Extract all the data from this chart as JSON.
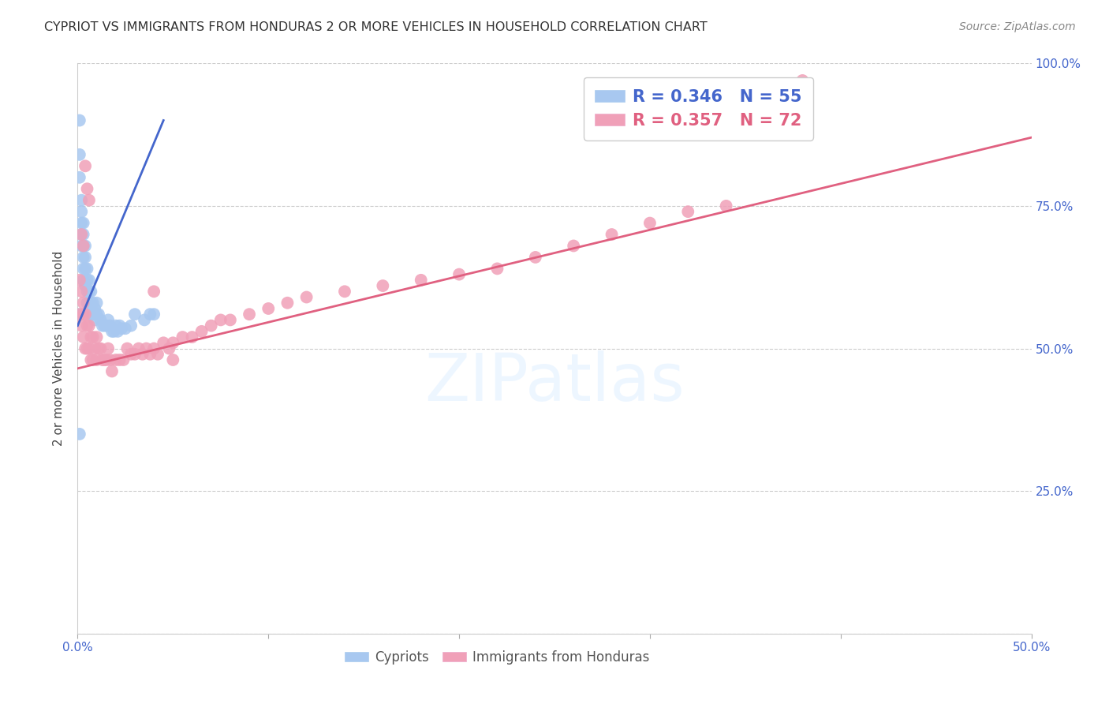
{
  "title": "CYPRIOT VS IMMIGRANTS FROM HONDURAS 2 OR MORE VEHICLES IN HOUSEHOLD CORRELATION CHART",
  "source": "Source: ZipAtlas.com",
  "ylabel": "2 or more Vehicles in Household",
  "xmin": 0.0,
  "xmax": 0.5,
  "ymin": 0.0,
  "ymax": 1.0,
  "xtick_positions": [
    0.0,
    0.1,
    0.2,
    0.3,
    0.4,
    0.5
  ],
  "xtick_labels": [
    "0.0%",
    "",
    "",
    "",
    "",
    "50.0%"
  ],
  "yticks": [
    0.0,
    0.25,
    0.5,
    0.75,
    1.0
  ],
  "ytick_labels_right": [
    "",
    "25.0%",
    "50.0%",
    "75.0%",
    "100.0%"
  ],
  "grid_color": "#cccccc",
  "background_color": "#ffffff",
  "cypriot_color": "#a8c8f0",
  "honduras_color": "#f0a0b8",
  "cypriot_line_color": "#4466cc",
  "honduras_line_color": "#e06080",
  "R_cypriot": 0.346,
  "N_cypriot": 55,
  "R_honduras": 0.357,
  "N_honduras": 72,
  "watermark": "ZIPatlas",
  "cypriot_legend": "Cypriots",
  "honduras_legend": "Immigrants from Honduras",
  "cypriot_points_x": [
    0.001,
    0.001,
    0.001,
    0.002,
    0.002,
    0.002,
    0.002,
    0.002,
    0.003,
    0.003,
    0.003,
    0.003,
    0.003,
    0.003,
    0.004,
    0.004,
    0.004,
    0.004,
    0.005,
    0.005,
    0.005,
    0.005,
    0.006,
    0.006,
    0.006,
    0.007,
    0.007,
    0.007,
    0.008,
    0.008,
    0.009,
    0.009,
    0.01,
    0.01,
    0.011,
    0.012,
    0.013,
    0.014,
    0.015,
    0.016,
    0.017,
    0.018,
    0.019,
    0.02,
    0.021,
    0.022,
    0.023,
    0.025,
    0.028,
    0.03,
    0.035,
    0.038,
    0.04,
    0.001,
    0.001
  ],
  "cypriot_points_y": [
    0.9,
    0.84,
    0.8,
    0.76,
    0.74,
    0.72,
    0.7,
    0.68,
    0.72,
    0.7,
    0.68,
    0.66,
    0.64,
    0.62,
    0.68,
    0.66,
    0.64,
    0.61,
    0.64,
    0.62,
    0.6,
    0.58,
    0.62,
    0.6,
    0.58,
    0.6,
    0.58,
    0.56,
    0.58,
    0.56,
    0.57,
    0.55,
    0.58,
    0.56,
    0.56,
    0.55,
    0.54,
    0.54,
    0.54,
    0.55,
    0.54,
    0.53,
    0.53,
    0.54,
    0.53,
    0.54,
    0.535,
    0.535,
    0.54,
    0.56,
    0.55,
    0.56,
    0.56,
    0.56,
    0.35
  ],
  "honduras_points_x": [
    0.001,
    0.001,
    0.002,
    0.002,
    0.003,
    0.003,
    0.003,
    0.004,
    0.004,
    0.005,
    0.005,
    0.006,
    0.006,
    0.007,
    0.007,
    0.008,
    0.008,
    0.009,
    0.01,
    0.01,
    0.011,
    0.012,
    0.013,
    0.014,
    0.015,
    0.016,
    0.017,
    0.018,
    0.02,
    0.022,
    0.024,
    0.026,
    0.028,
    0.03,
    0.032,
    0.034,
    0.036,
    0.038,
    0.04,
    0.042,
    0.045,
    0.048,
    0.05,
    0.055,
    0.06,
    0.065,
    0.07,
    0.075,
    0.08,
    0.09,
    0.1,
    0.11,
    0.12,
    0.14,
    0.16,
    0.18,
    0.2,
    0.22,
    0.24,
    0.26,
    0.28,
    0.3,
    0.32,
    0.34,
    0.002,
    0.003,
    0.004,
    0.005,
    0.006,
    0.04,
    0.05,
    0.38
  ],
  "honduras_points_y": [
    0.62,
    0.56,
    0.6,
    0.54,
    0.58,
    0.56,
    0.52,
    0.56,
    0.5,
    0.54,
    0.5,
    0.54,
    0.5,
    0.52,
    0.48,
    0.52,
    0.48,
    0.5,
    0.52,
    0.48,
    0.5,
    0.5,
    0.48,
    0.48,
    0.48,
    0.5,
    0.48,
    0.46,
    0.48,
    0.48,
    0.48,
    0.5,
    0.49,
    0.49,
    0.5,
    0.49,
    0.5,
    0.49,
    0.5,
    0.49,
    0.51,
    0.5,
    0.51,
    0.52,
    0.52,
    0.53,
    0.54,
    0.55,
    0.55,
    0.56,
    0.57,
    0.58,
    0.59,
    0.6,
    0.61,
    0.62,
    0.63,
    0.64,
    0.66,
    0.68,
    0.7,
    0.72,
    0.74,
    0.75,
    0.7,
    0.68,
    0.82,
    0.78,
    0.76,
    0.6,
    0.48,
    0.97
  ],
  "cyp_line_x0": 0.0,
  "cyp_line_x1": 0.045,
  "cyp_line_y0": 0.54,
  "cyp_line_y1": 0.9,
  "hon_line_x0": 0.0,
  "hon_line_x1": 0.5,
  "hon_line_y0": 0.465,
  "hon_line_y1": 0.87
}
